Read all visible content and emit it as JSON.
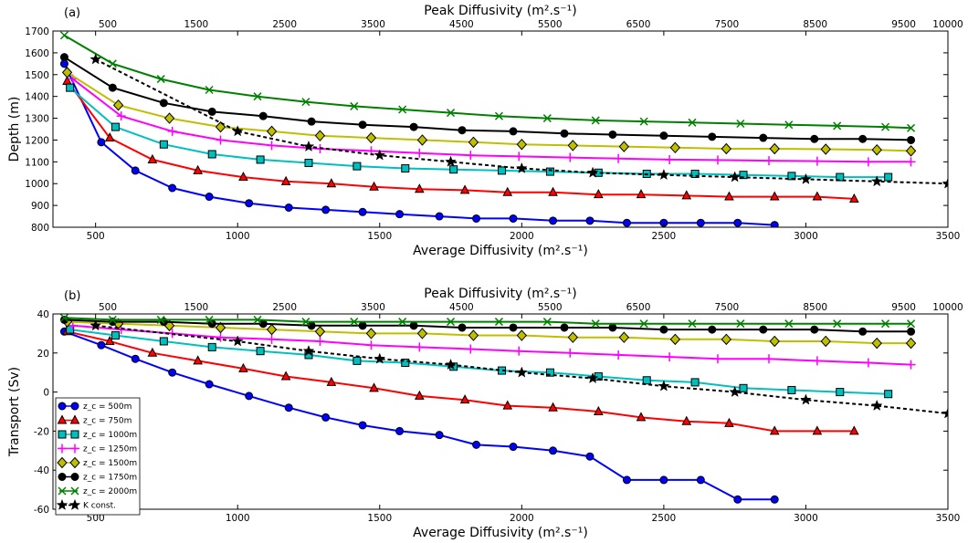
{
  "chart_data": [
    {
      "type": "line",
      "panel_label": "(a)",
      "xlabel": "Average Diffusivity (m$^2$.s$^{-1}$)",
      "xlabel_display": "Average Diffusivity (m².s⁻¹)",
      "x2label_display": "Peak Diffusivity (m².s⁻¹)",
      "ylabel": "Depth (m)",
      "xlim": [
        350,
        3500
      ],
      "ylim": [
        800,
        1700
      ],
      "x_ticks": [
        500,
        1000,
        1500,
        2000,
        2500,
        3000,
        3500
      ],
      "y_ticks": [
        800,
        900,
        1000,
        1100,
        1200,
        1300,
        1400,
        1500,
        1600,
        1700
      ],
      "x2_ticks": [
        500,
        1500,
        2500,
        3500,
        4500,
        5500,
        6500,
        7500,
        8500,
        9500,
        10000
      ],
      "x2_to_x_note": "top axis ticks",
      "grid": false,
      "series": [
        {
          "name": "z_c = 500m",
          "color": "#0000ff",
          "marker": "circle",
          "x": [
            390,
            520,
            640,
            770,
            900,
            1040,
            1180,
            1310,
            1440,
            1570,
            1710,
            1840,
            1970,
            2110,
            2240,
            2370,
            2500,
            2630,
            2760,
            2890
          ],
          "y": [
            1550,
            1190,
            1060,
            980,
            940,
            910,
            890,
            880,
            870,
            860,
            850,
            840,
            840,
            830,
            830,
            820,
            820,
            820,
            820,
            810
          ]
        },
        {
          "name": "z_c = 750m",
          "color": "#ff0000",
          "marker": "triangle",
          "x": [
            400,
            550,
            700,
            860,
            1020,
            1170,
            1330,
            1480,
            1640,
            1800,
            1950,
            2110,
            2270,
            2420,
            2580,
            2730,
            2890,
            3040,
            3170
          ],
          "y": [
            1470,
            1210,
            1110,
            1060,
            1030,
            1010,
            1000,
            985,
            975,
            970,
            960,
            960,
            950,
            950,
            945,
            940,
            940,
            940,
            930
          ]
        },
        {
          "name": "z_c = 1000m",
          "color": "#00bfbf",
          "marker": "square",
          "x": [
            410,
            570,
            740,
            910,
            1080,
            1250,
            1420,
            1590,
            1760,
            1930,
            2100,
            2270,
            2440,
            2610,
            2780,
            2950,
            3120,
            3290
          ],
          "y": [
            1440,
            1260,
            1180,
            1135,
            1110,
            1095,
            1080,
            1070,
            1065,
            1060,
            1055,
            1050,
            1045,
            1045,
            1040,
            1035,
            1030,
            1030
          ]
        },
        {
          "name": "z_c = 1250m",
          "color": "#ff00ff",
          "marker": "plus",
          "x": [
            420,
            590,
            770,
            940,
            1120,
            1290,
            1470,
            1640,
            1820,
            1990,
            2170,
            2340,
            2520,
            2690,
            2870,
            3040,
            3220,
            3370
          ],
          "y": [
            1480,
            1310,
            1240,
            1200,
            1175,
            1160,
            1150,
            1140,
            1130,
            1125,
            1120,
            1115,
            1110,
            1108,
            1105,
            1103,
            1100,
            1100
          ]
        },
        {
          "name": "z_c = 1500m",
          "color": "#bfbf00",
          "marker": "diamond",
          "x": [
            400,
            580,
            760,
            940,
            1120,
            1290,
            1470,
            1650,
            1830,
            2000,
            2180,
            2360,
            2540,
            2720,
            2890,
            3070,
            3250,
            3370
          ],
          "y": [
            1510,
            1360,
            1300,
            1260,
            1240,
            1220,
            1210,
            1200,
            1190,
            1180,
            1175,
            1170,
            1165,
            1160,
            1160,
            1158,
            1155,
            1150
          ]
        },
        {
          "name": "z_c = 1750m",
          "color": "#000000",
          "marker": "circle",
          "x": [
            390,
            560,
            740,
            910,
            1090,
            1260,
            1440,
            1620,
            1790,
            1970,
            2150,
            2320,
            2500,
            2670,
            2850,
            3030,
            3200,
            3370
          ],
          "y": [
            1580,
            1440,
            1370,
            1330,
            1310,
            1285,
            1270,
            1260,
            1245,
            1240,
            1230,
            1225,
            1220,
            1215,
            1210,
            1205,
            1205,
            1200
          ]
        },
        {
          "name": "z_c = 2000m",
          "color": "#008000",
          "marker": "x",
          "x": [
            390,
            560,
            730,
            900,
            1070,
            1240,
            1410,
            1580,
            1750,
            1920,
            2090,
            2260,
            2430,
            2600,
            2770,
            2940,
            3110,
            3280,
            3370
          ],
          "y": [
            1680,
            1550,
            1480,
            1430,
            1400,
            1375,
            1355,
            1340,
            1325,
            1310,
            1300,
            1290,
            1285,
            1280,
            1275,
            1270,
            1265,
            1260,
            1255
          ]
        },
        {
          "name": "K const.",
          "color": "#000000",
          "marker": "star",
          "dashed": true,
          "x": [
            500,
            1000,
            1250,
            1500,
            1750,
            2000,
            2250,
            2500,
            2750,
            3000,
            3250,
            3500
          ],
          "y": [
            1570,
            1240,
            1170,
            1130,
            1100,
            1070,
            1050,
            1040,
            1030,
            1020,
            1010,
            1000
          ]
        }
      ]
    },
    {
      "type": "line",
      "panel_label": "(b)",
      "xlabel_display": "Average Diffusivity (m².s⁻¹)",
      "x2label_display": "Peak Diffusivity (m².s⁻¹)",
      "ylabel": "Transport (Sv)",
      "xlim": [
        350,
        3500
      ],
      "ylim": [
        -60,
        40
      ],
      "x_ticks": [
        500,
        1000,
        1500,
        2000,
        2500,
        3000,
        3500
      ],
      "y_ticks": [
        -60,
        -40,
        -20,
        0,
        20,
        40
      ],
      "x2_ticks": [
        500,
        1500,
        2500,
        3500,
        4500,
        5500,
        6500,
        7500,
        8500,
        9500,
        10000
      ],
      "legend_position": "lower-left",
      "grid": false,
      "series": [
        {
          "name": "z_c = 500m",
          "legend": "z_c = 500m",
          "color": "#0000ff",
          "marker": "circle",
          "x": [
            390,
            520,
            640,
            770,
            900,
            1040,
            1180,
            1310,
            1440,
            1570,
            1710,
            1840,
            1970,
            2110,
            2240,
            2370,
            2500,
            2630,
            2760,
            2890
          ],
          "y": [
            31,
            24,
            17,
            10,
            4,
            -2,
            -8,
            -13,
            -17,
            -20,
            -22,
            -27,
            -28,
            -30,
            -33,
            -45,
            -45,
            -45,
            -55,
            -55
          ]
        },
        {
          "name": "z_c = 750m",
          "legend": "z_c = 750m",
          "color": "#ff0000",
          "marker": "triangle",
          "x": [
            400,
            550,
            700,
            860,
            1020,
            1170,
            1330,
            1480,
            1640,
            1800,
            1950,
            2110,
            2270,
            2420,
            2580,
            2730,
            2890,
            3040,
            3170
          ],
          "y": [
            31,
            26,
            20,
            16,
            12,
            8,
            5,
            2,
            -2,
            -4,
            -7,
            -8,
            -10,
            -13,
            -15,
            -16,
            -20,
            -20,
            -20
          ]
        },
        {
          "name": "z_c = 1000m",
          "legend": "z_c = 1000m",
          "color": "#00bfbf",
          "marker": "square",
          "x": [
            410,
            570,
            740,
            910,
            1080,
            1250,
            1420,
            1590,
            1760,
            1930,
            2100,
            2270,
            2440,
            2610,
            2780,
            2950,
            3120,
            3290
          ],
          "y": [
            32,
            29,
            26,
            23,
            21,
            19,
            16,
            15,
            13,
            11,
            10,
            8,
            6,
            5,
            2,
            1,
            0,
            -1
          ]
        },
        {
          "name": "z_c = 1250m",
          "legend": "z_c = 1250m",
          "color": "#ff00ff",
          "marker": "plus",
          "x": [
            420,
            590,
            770,
            940,
            1120,
            1290,
            1470,
            1640,
            1820,
            1990,
            2170,
            2340,
            2520,
            2690,
            2870,
            3040,
            3220,
            3370
          ],
          "y": [
            34,
            32,
            30,
            28,
            27,
            26,
            24,
            23,
            22,
            21,
            20,
            19,
            18,
            17,
            17,
            16,
            15,
            14
          ]
        },
        {
          "name": "z_c = 1500m",
          "legend": "z_c = 1500m",
          "color": "#bfbf00",
          "marker": "diamond",
          "x": [
            400,
            580,
            760,
            940,
            1120,
            1290,
            1470,
            1650,
            1830,
            2000,
            2180,
            2360,
            2540,
            2720,
            2890,
            3070,
            3250,
            3370
          ],
          "y": [
            36,
            35,
            34,
            33,
            32,
            31,
            30,
            30,
            29,
            29,
            28,
            28,
            27,
            27,
            26,
            26,
            25,
            25
          ]
        },
        {
          "name": "z_c = 1750m",
          "legend": "z_c = 1750m",
          "color": "#000000",
          "marker": "circle",
          "x": [
            390,
            560,
            740,
            910,
            1090,
            1260,
            1440,
            1620,
            1790,
            1970,
            2150,
            2320,
            2500,
            2670,
            2850,
            3030,
            3200,
            3370
          ],
          "y": [
            37,
            36,
            36,
            35,
            35,
            34,
            34,
            34,
            33,
            33,
            33,
            33,
            32,
            32,
            32,
            32,
            31,
            31
          ]
        },
        {
          "name": "z_c = 2000m",
          "legend": "z_c = 2000m",
          "color": "#008000",
          "marker": "x",
          "x": [
            390,
            560,
            730,
            900,
            1070,
            1240,
            1410,
            1580,
            1750,
            1920,
            2090,
            2260,
            2430,
            2600,
            2770,
            2940,
            3110,
            3280,
            3370
          ],
          "y": [
            38,
            37,
            37,
            37,
            37,
            36,
            36,
            36,
            36,
            36,
            36,
            35,
            35,
            35,
            35,
            35,
            35,
            35,
            35
          ]
        },
        {
          "name": "K const.",
          "legend": "K const.",
          "color": "#000000",
          "marker": "star",
          "dashed": true,
          "x": [
            500,
            1000,
            1250,
            1500,
            1750,
            2000,
            2250,
            2500,
            2750,
            3000,
            3250,
            3500
          ],
          "y": [
            34,
            26,
            21,
            17,
            14,
            10,
            7,
            3,
            0,
            -4,
            -7,
            -11
          ]
        }
      ]
    }
  ]
}
